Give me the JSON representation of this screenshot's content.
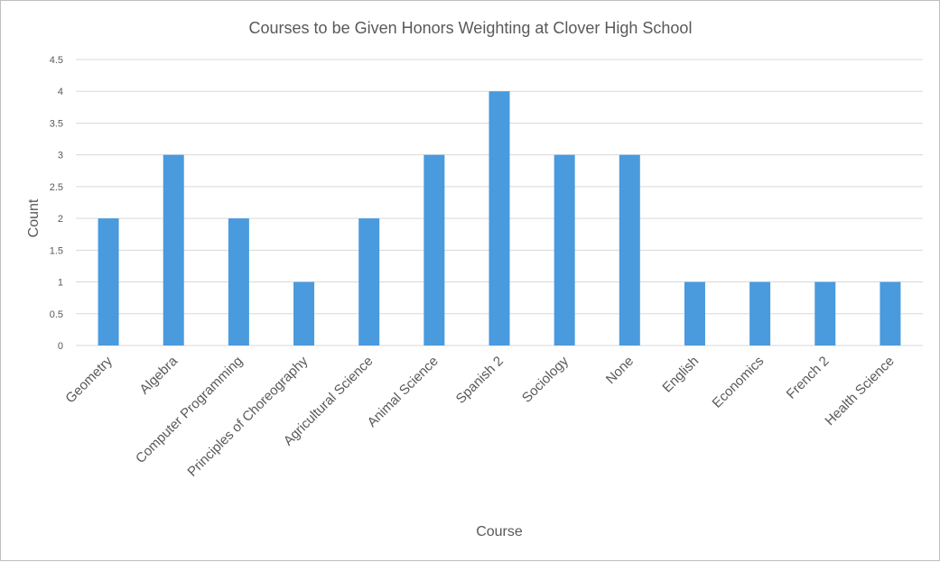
{
  "chart_data": {
    "type": "bar",
    "title": "Courses to be Given Honors Weighting at Clover High School",
    "xlabel": "Course",
    "ylabel": "Count",
    "ylim": [
      0,
      4.5
    ],
    "yticks": [
      "0",
      "0.5",
      "1",
      "1.5",
      "2",
      "2.5",
      "3",
      "3.5",
      "4",
      "4.5"
    ],
    "grid": true,
    "legend": "none",
    "bar_color": "#4a9ade",
    "categories": [
      "Geometry",
      "Algebra",
      "Computer Programming",
      "Principles of Choreography",
      "Agricultural Science",
      "Animal Science",
      "Spanish 2",
      "Sociology",
      "None",
      "English",
      "Economics",
      "French 2",
      "Health Science"
    ],
    "values": [
      2,
      3,
      2,
      1,
      2,
      3,
      4,
      3,
      3,
      1,
      1,
      1,
      1
    ]
  }
}
